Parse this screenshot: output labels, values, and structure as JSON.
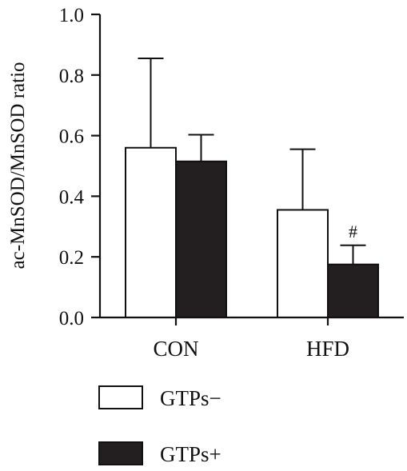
{
  "chart_data": {
    "type": "bar",
    "title": "",
    "xlabel": "",
    "ylabel": "ac-MnSOD/MnSOD ratio",
    "ylim": [
      0,
      1.0
    ],
    "yticks": [
      0.0,
      0.2,
      0.4,
      0.6,
      0.8,
      1.0
    ],
    "ytick_labels": [
      "0.0",
      "0.2",
      "0.4",
      "0.6",
      "0.8",
      "1.0"
    ],
    "categories": [
      "CON",
      "HFD"
    ],
    "series": [
      {
        "name": "GTPs−",
        "values": [
          0.56,
          0.355
        ],
        "errors": [
          0.295,
          0.2
        ],
        "color": "#ffffff"
      },
      {
        "name": "GTPs+",
        "values": [
          0.515,
          0.175
        ],
        "errors": [
          0.088,
          0.063
        ],
        "color": "#231f20"
      }
    ],
    "annotations": [
      {
        "text": "#",
        "category": "HFD",
        "series": "GTPs+"
      }
    ],
    "grid": false,
    "legend_position": "bottom-left"
  }
}
